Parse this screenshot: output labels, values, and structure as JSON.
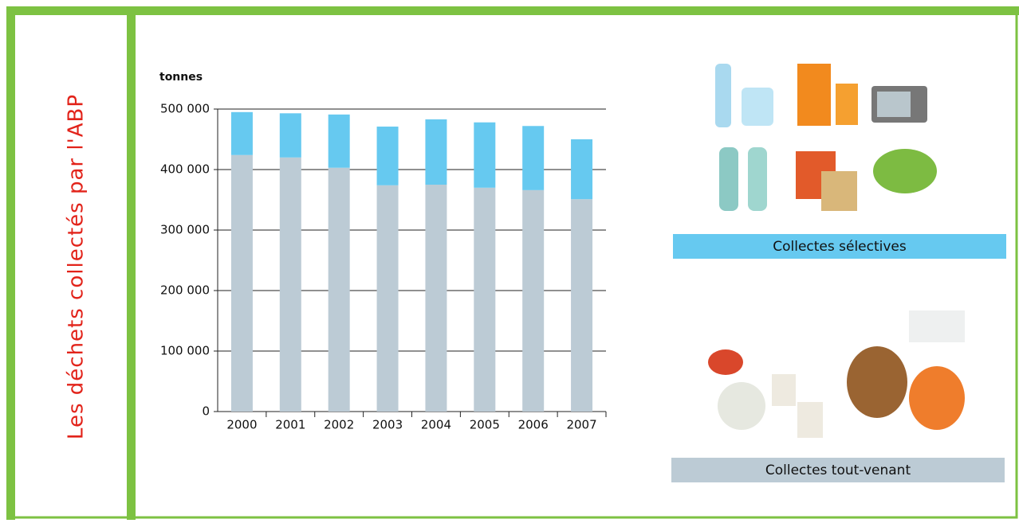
{
  "chart_data": {
    "type": "stacked-bar",
    "side_title": "Les déchets collectés par l'ABP",
    "y_label": "tonnes",
    "categories": [
      "2000",
      "2001",
      "2002",
      "2003",
      "2004",
      "2005",
      "2006",
      "2007"
    ],
    "series": [
      {
        "name": "Collectes tout-venant",
        "color": "#bccbd5",
        "values": [
          424000,
          420000,
          403000,
          374000,
          375000,
          370000,
          366000,
          351000
        ]
      },
      {
        "name": "Collectes sélectives",
        "color": "#66c9f0",
        "values": [
          71000,
          73000,
          88000,
          97000,
          108000,
          108000,
          106000,
          99000
        ]
      }
    ],
    "ylim": [
      0,
      500000
    ],
    "yticks": [
      0,
      {
        "value": 100000,
        "label": "100 000"
      },
      {
        "value": 200000,
        "label": "200 000"
      },
      {
        "value": 300000,
        "label": "300 000"
      },
      {
        "value": 400000,
        "label": "400 000"
      },
      {
        "value": 500000,
        "label": "500 000"
      }
    ],
    "grid": true
  }
}
